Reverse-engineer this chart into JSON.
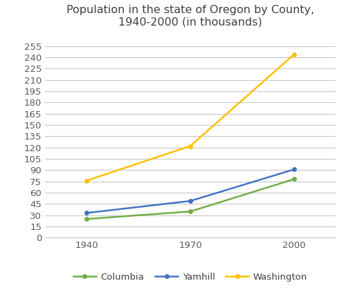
{
  "title": "Population in the state of Oregon by County,\n1940-2000 (in thousands)",
  "x_values": [
    1940,
    1970,
    2000
  ],
  "x_labels": [
    "1940",
    "1970",
    "2000"
  ],
  "series": [
    {
      "name": "Columbia",
      "values": [
        25,
        35,
        78
      ],
      "color": "#70ad47",
      "marker": "o"
    },
    {
      "name": "Yamhill",
      "values": [
        33,
        49,
        91
      ],
      "color": "#4472c4",
      "marker": "o"
    },
    {
      "name": "Washington",
      "values": [
        76,
        122,
        244
      ],
      "color": "#ffc000",
      "marker": "o"
    }
  ],
  "ylim": [
    0,
    270
  ],
  "yticks": [
    0,
    15,
    30,
    45,
    60,
    75,
    90,
    105,
    120,
    135,
    150,
    165,
    180,
    195,
    210,
    225,
    240,
    255
  ],
  "xlim": [
    1928,
    2012
  ],
  "background_color": "#ffffff",
  "grid_color": "#c8c8c8",
  "title_fontsize": 11.5,
  "tick_fontsize": 9.5,
  "legend_fontsize": 9.5
}
